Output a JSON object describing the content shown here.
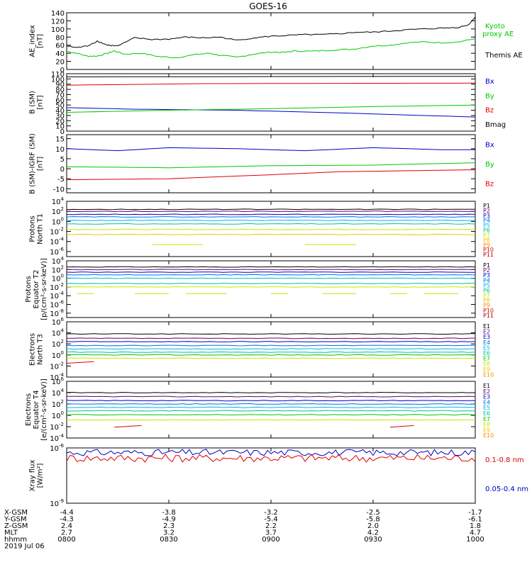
{
  "title": "GOES-16",
  "colors": {
    "black": "#000000",
    "blue": "#0000c8",
    "green": "#00c800",
    "red": "#e00000",
    "p": [
      "#000000",
      "#6a006a",
      "#0000c8",
      "#0070e0",
      "#00b4e6",
      "#00c0a0",
      "#c8e600",
      "#e6c800",
      "#ff8c00",
      "#e00000",
      "#b40000"
    ],
    "e": [
      "#000000",
      "#6a006a",
      "#0000c8",
      "#0070e0",
      "#00b4e6",
      "#00c0a0",
      "#00c800",
      "#c8e600",
      "#e6c800",
      "#ff8c00",
      "#e00000"
    ]
  },
  "chart_data": [
    {
      "type": "line",
      "id": "ae",
      "ylabel_lines": [
        "AE_index",
        "[nT]"
      ],
      "ylim": [
        0,
        140
      ],
      "yticks": [
        "0",
        "20",
        "40",
        "60",
        "80",
        "100",
        "120",
        "140"
      ],
      "legend": [
        {
          "label": "Kyoto",
          "color": "green"
        },
        {
          "label": "proxy AE",
          "color": "green"
        },
        {
          "label": "Themis AE",
          "color": "black"
        }
      ],
      "series": [
        {
          "name": "Kyoto proxy AE",
          "color": "green",
          "x": [
            0,
            3,
            6,
            9,
            12,
            14,
            17,
            22,
            27,
            32,
            38,
            42,
            45,
            50,
            55,
            60,
            64,
            67,
            72,
            78,
            84,
            90,
            95,
            100,
            105,
            110,
            115,
            120
          ],
          "y": [
            45,
            40,
            33,
            33,
            40,
            46,
            38,
            40,
            32,
            29,
            37,
            40,
            35,
            30,
            38,
            43,
            42,
            46,
            45,
            48,
            50,
            58,
            60,
            66,
            68,
            66,
            68,
            76
          ]
        },
        {
          "name": "Themis AE",
          "color": "black",
          "x": [
            0,
            3,
            6,
            9,
            12,
            15,
            20,
            25,
            30,
            35,
            40,
            45,
            50,
            55,
            60,
            65,
            70,
            75,
            80,
            85,
            90,
            95,
            100,
            105,
            110,
            115,
            118,
            120
          ],
          "y": [
            58,
            54,
            58,
            70,
            60,
            58,
            78,
            74,
            75,
            80,
            78,
            80,
            72,
            78,
            82,
            84,
            86,
            86,
            88,
            92,
            92,
            95,
            98,
            100,
            102,
            104,
            110,
            130
          ]
        }
      ]
    },
    {
      "type": "line",
      "id": "bsm",
      "ylabel_lines": [
        "B (SM)",
        "[nT]"
      ],
      "ylim": [
        0,
        110
      ],
      "yticks": [
        "0",
        "10",
        "20",
        "30",
        "40",
        "50",
        "60",
        "70",
        "80",
        "90",
        "100",
        "110"
      ],
      "legend": [
        {
          "label": "Bx",
          "color": "blue"
        },
        {
          "label": "By",
          "color": "green"
        },
        {
          "label": "Bz",
          "color": "red"
        },
        {
          "label": "Bmag",
          "color": "black"
        }
      ],
      "series": [
        {
          "name": "Bmag",
          "color": "black",
          "x": [
            0,
            120
          ],
          "y": [
            104,
            105
          ]
        },
        {
          "name": "Bz",
          "color": "red",
          "x": [
            0,
            40,
            120
          ],
          "y": [
            88,
            91,
            92
          ]
        },
        {
          "name": "Bx",
          "color": "blue",
          "x": [
            0,
            20,
            50,
            80,
            120
          ],
          "y": [
            45,
            42,
            40,
            35,
            27
          ]
        },
        {
          "name": "By",
          "color": "green",
          "x": [
            0,
            30,
            60,
            90,
            120
          ],
          "y": [
            36,
            40,
            43,
            47,
            50
          ]
        }
      ]
    },
    {
      "type": "line",
      "id": "bigrf",
      "ylabel_lines": [
        "B (SM)-IGRF (SM)",
        "[nT]"
      ],
      "ylim": [
        -12,
        17
      ],
      "yticks": [
        "-10",
        "-5",
        "0",
        "5",
        "10",
        "15"
      ],
      "ytick_values": [
        -10,
        -5,
        0,
        5,
        10,
        15
      ],
      "legend": [
        {
          "label": "Bx",
          "color": "blue"
        },
        {
          "label": "By",
          "color": "green"
        },
        {
          "label": "Bz",
          "color": "red"
        }
      ],
      "series": [
        {
          "name": "Bx",
          "color": "blue",
          "x": [
            0,
            15,
            30,
            50,
            70,
            90,
            110,
            120
          ],
          "y": [
            10,
            9,
            10.5,
            10,
            9,
            10.5,
            9.5,
            9.5
          ]
        },
        {
          "name": "By",
          "color": "green",
          "x": [
            0,
            30,
            60,
            90,
            120
          ],
          "y": [
            1,
            0.5,
            1.5,
            1.8,
            3
          ]
        },
        {
          "name": "Bz",
          "color": "red",
          "x": [
            0,
            30,
            60,
            80,
            100,
            120
          ],
          "y": [
            -5.5,
            -5,
            -3,
            -1.5,
            -1,
            -0.5
          ]
        }
      ]
    },
    {
      "type": "line",
      "id": "pn",
      "log": true,
      "ylabel_lines": [
        "Protons",
        "North T1"
      ],
      "ylim": [
        -7,
        4
      ],
      "ytick_exps": [
        4,
        2,
        0,
        -2,
        -4,
        -6
      ],
      "channels": [
        "P1",
        "P2",
        "P3",
        "P4",
        "P5",
        "P6",
        "P7",
        "P8",
        "P9",
        "P10",
        "P11"
      ],
      "color_set": "p",
      "levels": [
        2.4,
        2,
        1.4,
        0.9,
        0.2,
        -0.5,
        -1.6,
        -2.6,
        null,
        null,
        null
      ],
      "segments": [
        {
          "y": -4.6,
          "x": [
            [
              25,
              40
            ],
            [
              70,
              85
            ]
          ]
        }
      ]
    },
    {
      "type": "line",
      "id": "pe",
      "log": true,
      "ylabel_lines": [
        "Protons",
        "Equator T2",
        "[p/(cm²-s-sr-keV)]"
      ],
      "ylim": [
        -9,
        4
      ],
      "ytick_exps": [
        4,
        2,
        0,
        -2,
        -4,
        -6,
        -8
      ],
      "channels": [
        "P1",
        "P2",
        "P3",
        "P4",
        "P5",
        "P6",
        "P7",
        "P8",
        "P9",
        "P10",
        "P11"
      ],
      "color_set": "p",
      "levels": [
        2.6,
        2,
        1.4,
        0.8,
        0,
        -1.2,
        -2,
        null,
        null,
        null,
        null
      ],
      "segments": [
        {
          "y": -3.5,
          "x": [
            [
              3,
              8
            ],
            [
              20,
              30
            ],
            [
              35,
              47
            ],
            [
              60,
              65
            ],
            [
              75,
              85
            ],
            [
              95,
              100
            ],
            [
              105,
              115
            ]
          ]
        }
      ]
    },
    {
      "type": "line",
      "id": "en",
      "log": true,
      "ylabel_lines": [
        "Electrons",
        "North T3"
      ],
      "ylim": [
        -4,
        6
      ],
      "ytick_exps": [
        6,
        4,
        2,
        0,
        -2,
        -4
      ],
      "channels": [
        "E1",
        "E2",
        "E3",
        "E4",
        "E5",
        "E6",
        "E7",
        "E8",
        "E9",
        "E10"
      ],
      "color_set": "e",
      "levels": [
        3.8,
        3,
        2.4,
        1.7,
        1.1,
        0.5,
        0,
        -0.6,
        null,
        null
      ],
      "segments": [
        {
          "y": -1.5,
          "x": [
            [
              0,
              8
            ]
          ],
          "color_index": 10
        }
      ]
    },
    {
      "type": "line",
      "id": "ee",
      "log": true,
      "ylabel_lines": [
        "Electrons",
        "Equator T4",
        "[e/(cm²-s-sr-keV)]"
      ],
      "ylim": [
        -4,
        6
      ],
      "ytick_exps": [
        6,
        4,
        2,
        0,
        -2,
        -4
      ],
      "channels": [
        "E1",
        "E2",
        "E3",
        "E4",
        "E5",
        "E6",
        "E7",
        "E8",
        "E9",
        "E10"
      ],
      "color_set": "e",
      "levels": [
        4,
        3.3,
        2.6,
        2,
        1.4,
        0.8,
        0.1,
        -0.8,
        null,
        null
      ],
      "segments": [
        {
          "y": -2.1,
          "x": [
            [
              14,
              22
            ],
            [
              95,
              102
            ]
          ],
          "color_index": 10
        }
      ]
    },
    {
      "type": "line",
      "id": "xray",
      "log": true,
      "ylabel_lines": [
        "Xray flux",
        "[W/m²]"
      ],
      "ylim": [
        -9,
        -6
      ],
      "ytick_exps": [
        -6,
        -9
      ],
      "legend": [
        {
          "label": "0.1-0.8 nm",
          "color": "red"
        },
        {
          "label": "0.05-0.4 nm",
          "color": "blue"
        }
      ],
      "series": [
        {
          "name": "0.05-0.4 nm",
          "color": "blue",
          "base": -6.25,
          "amp": 0.18
        },
        {
          "name": "0.1-0.8 nm",
          "color": "red",
          "base": -6.55,
          "amp": 0.22
        }
      ]
    }
  ],
  "xaxis": {
    "xlim": [
      0,
      120
    ],
    "tick_x": [
      0,
      30,
      60,
      90,
      120
    ],
    "rows": [
      {
        "label": "X-GSM",
        "values": [
          "-4.4",
          "-3.8",
          "-3.2",
          "-2.5",
          "-1.7"
        ]
      },
      {
        "label": "Y-GSM",
        "values": [
          "-4.3",
          "-4.9",
          "-5.4",
          "-5.8",
          "-6.1"
        ]
      },
      {
        "label": "Z-GSM",
        "values": [
          "2.4",
          "2.3",
          "2.2",
          "2.0",
          "1.8"
        ]
      },
      {
        "label": "MLT",
        "values": [
          "2.7",
          "3.2",
          "3.7",
          "4.2",
          "4.7"
        ]
      },
      {
        "label": "hhmm",
        "values": [
          "0800",
          "0830",
          "0900",
          "0930",
          "1000"
        ]
      }
    ],
    "date": "2019 Jul 06"
  }
}
